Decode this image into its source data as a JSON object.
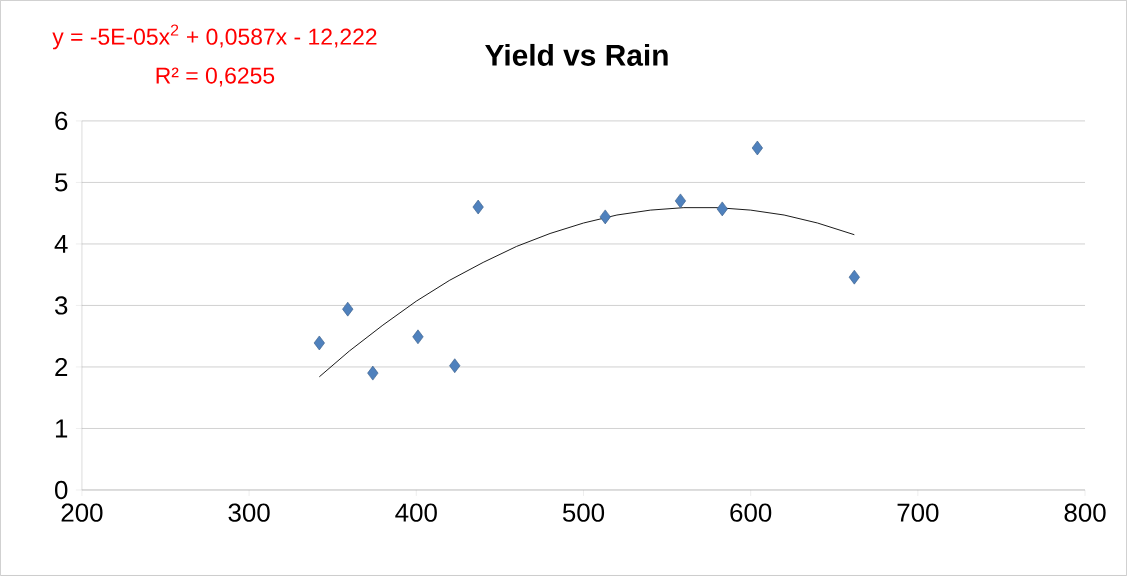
{
  "chart_data": {
    "type": "scatter",
    "title": "Yield vs Rain",
    "annotations": [
      "y = -5E-05x$^{2}$ + 0,0587x - 12,222",
      "R² = 0,6255"
    ],
    "xlim": [
      200,
      800
    ],
    "xticks": [
      200,
      300,
      400,
      500,
      600,
      700,
      800
    ],
    "ylim": [
      0,
      6
    ],
    "yticks": [
      0,
      1,
      2,
      3,
      4,
      5,
      6
    ],
    "grid": "y",
    "series": [
      {
        "color": "#4f81bd",
        "marker": "diamond",
        "x": [
          342,
          359,
          374,
          401,
          423,
          437,
          513,
          558,
          583,
          604,
          662
        ],
        "values": [
          2.39,
          2.94,
          1.9,
          2.49,
          2.02,
          4.6,
          4.44,
          4.7,
          4.57,
          5.56,
          3.46
        ]
      },
      {
        "type": "line",
        "color": "#000000",
        "marker": "none",
        "line_style": "solid",
        "x": [
          342,
          360,
          380,
          400,
          420,
          440,
          460,
          480,
          500,
          520,
          540,
          560,
          580,
          600,
          620,
          640,
          662
        ],
        "values": [
          1.84,
          2.26,
          2.68,
          3.07,
          3.41,
          3.7,
          3.96,
          4.17,
          4.34,
          4.47,
          4.55,
          4.59,
          4.59,
          4.55,
          4.47,
          4.34,
          4.15
        ]
      }
    ]
  }
}
